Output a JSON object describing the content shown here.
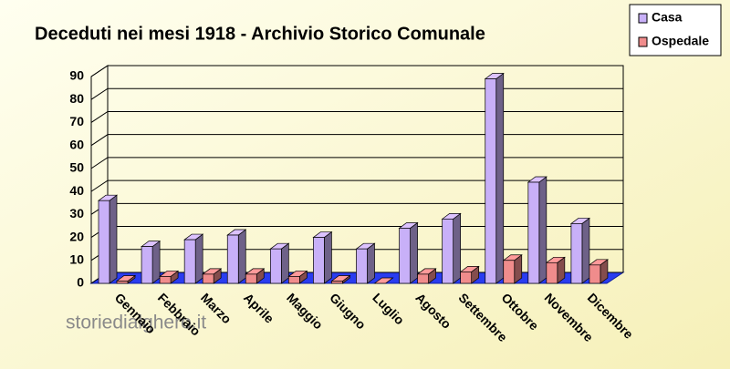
{
  "chart_data": {
    "type": "bar3d",
    "title": "Deceduti nei mesi 1918 - Archivio Storico Comunale",
    "categories": [
      "Gennaio",
      "Febbraio",
      "Marzo",
      "Aprile",
      "Maggio",
      "Giugno",
      "Luglio",
      "Agosto",
      "Settembre",
      "Ottobre",
      "Novembre",
      "Dicembre"
    ],
    "series": [
      {
        "name": "Casa",
        "color": "#c8b0f8",
        "values": [
          36,
          16,
          19,
          21,
          15,
          20,
          15,
          24,
          28,
          89,
          44,
          26
        ]
      },
      {
        "name": "Ospedale",
        "color": "#f08c8c",
        "values": [
          1,
          3,
          4,
          4,
          3,
          1,
          0,
          4,
          5,
          10,
          9,
          8
        ]
      }
    ],
    "ylim": [
      0,
      90
    ],
    "yticks": [
      0,
      10,
      20,
      30,
      40,
      50,
      60,
      70,
      80,
      90
    ],
    "grid": true,
    "legend": "top-right",
    "watermark": "storiedialghero.it"
  }
}
